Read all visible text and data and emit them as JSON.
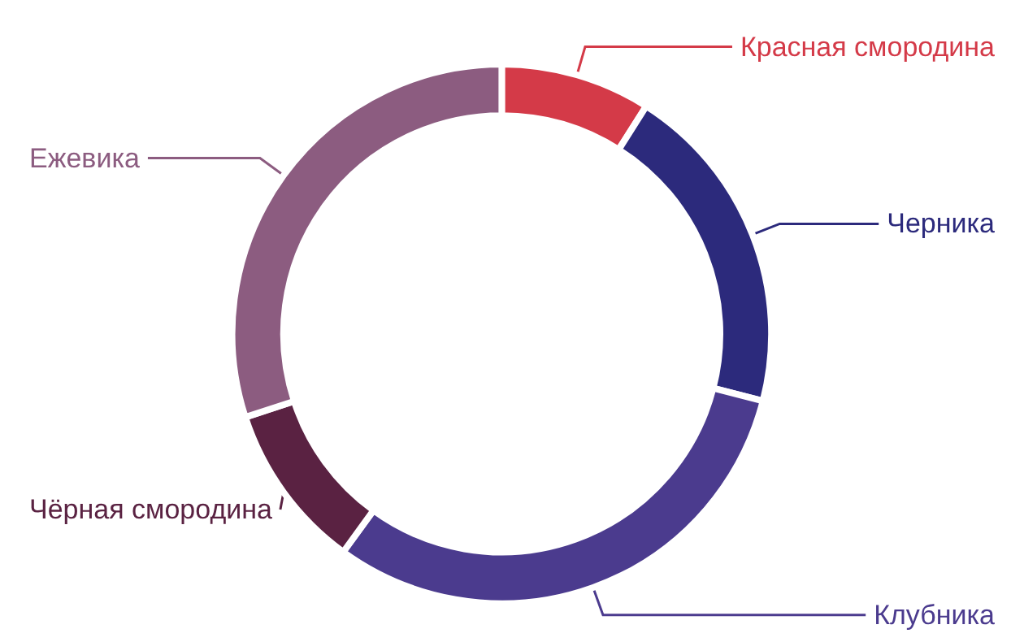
{
  "chart_data": {
    "type": "donut",
    "categories": [
      "Красная смородина",
      "Черника",
      "Клубника",
      "Чёрная смородина",
      "Ежевика"
    ],
    "values": [
      9,
      20,
      31,
      10,
      30
    ],
    "colors": [
      "#d43a48",
      "#2c2a7c",
      "#4b3b8e",
      "#5a2242",
      "#8c5c80"
    ]
  }
}
